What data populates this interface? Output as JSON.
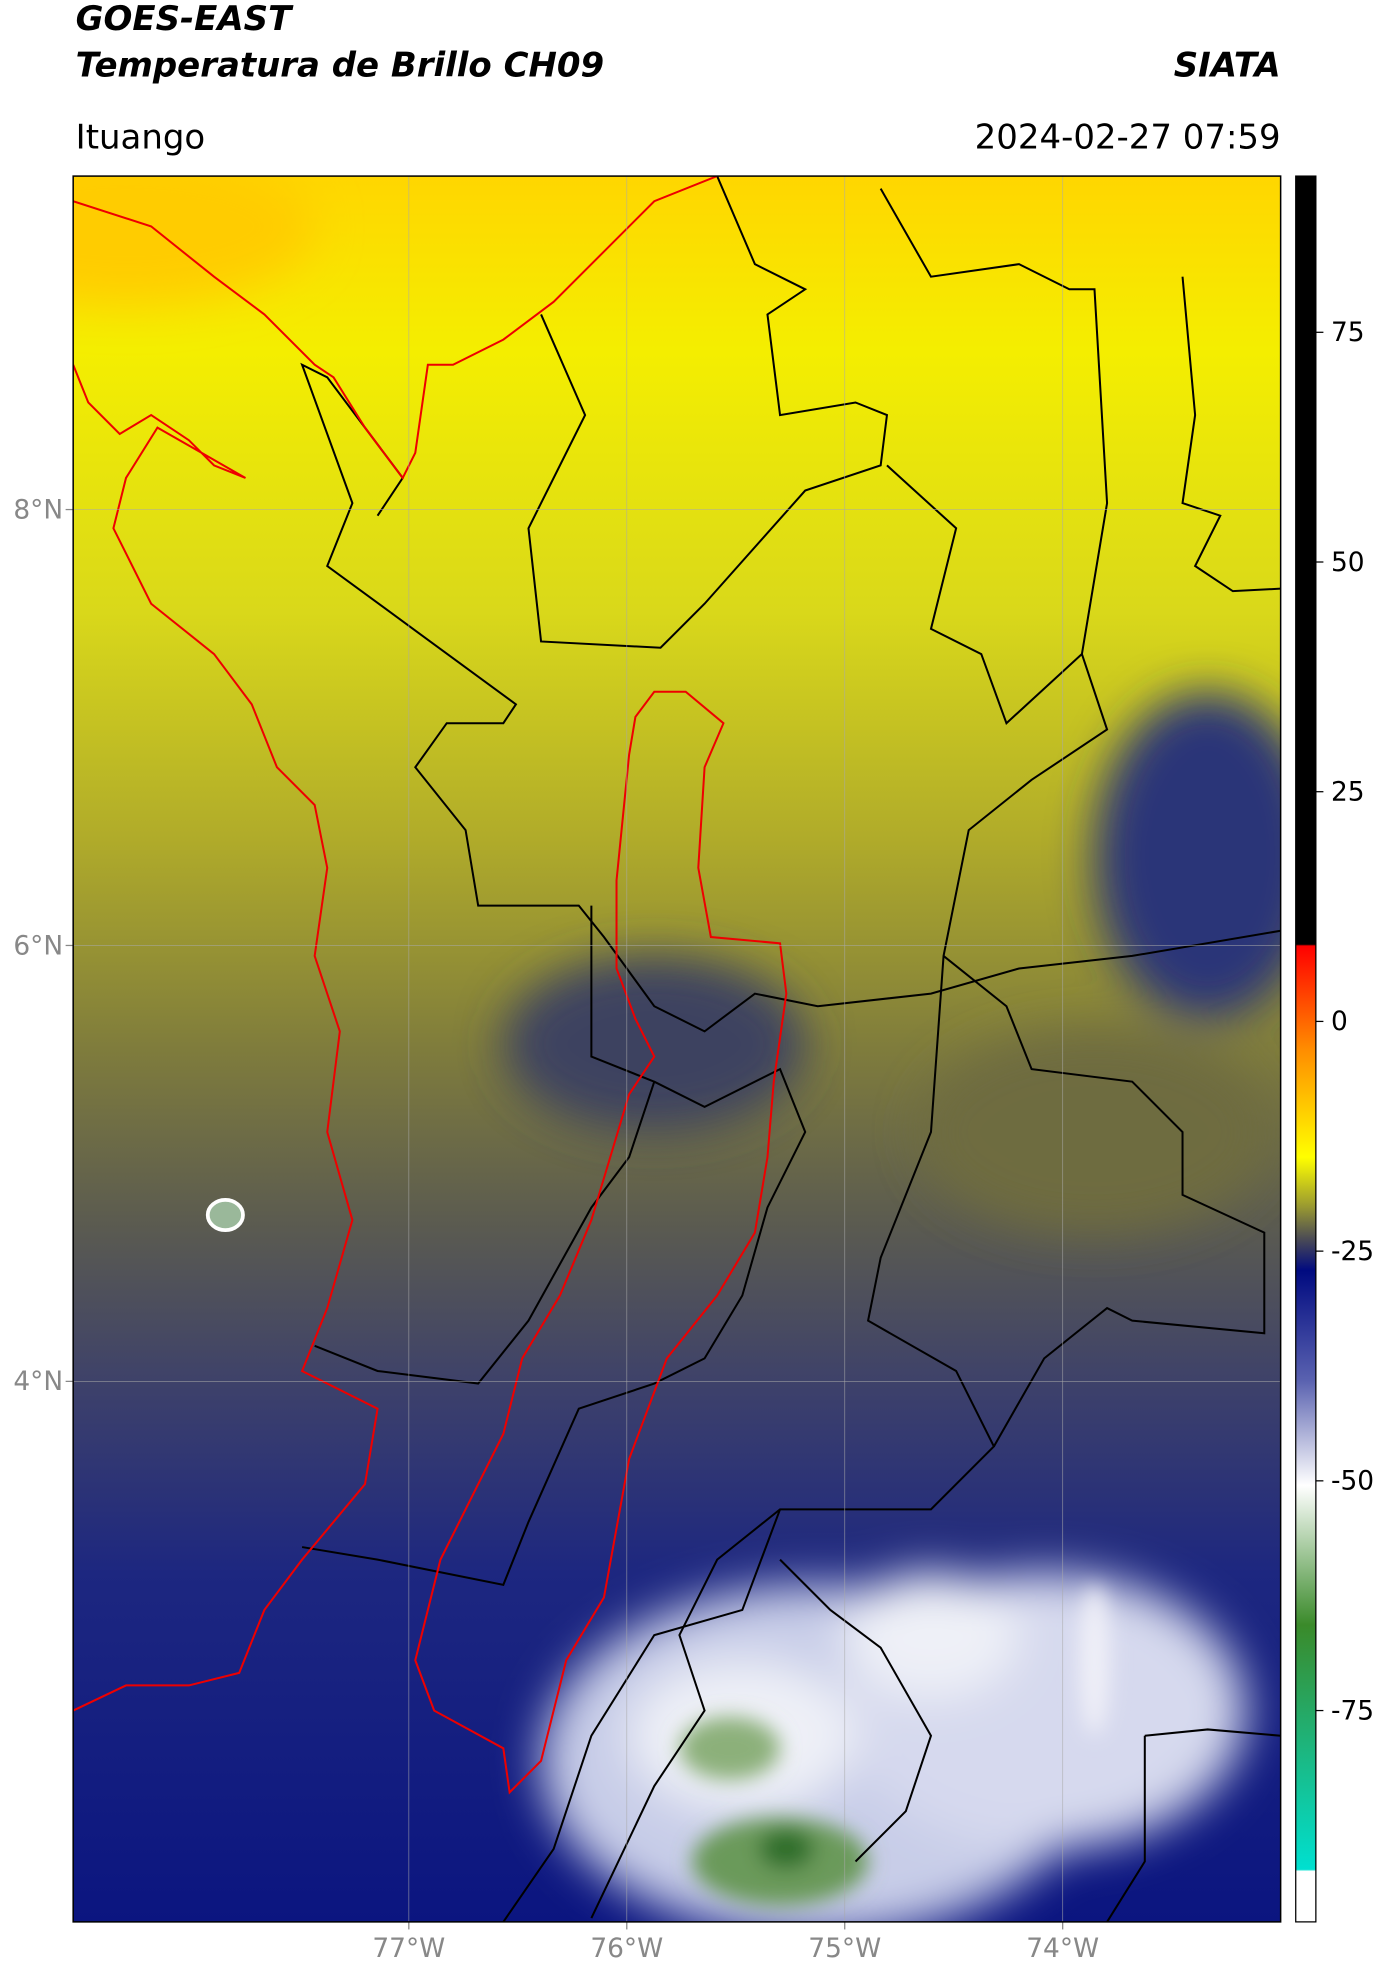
{
  "header": {
    "title": "GOES-EAST",
    "subtitle": "Temperatura de Brillo CH09",
    "agency": "SIATA",
    "location": "Ituango",
    "datetime": "2024-02-27 07:59"
  },
  "map": {
    "lonlim": [
      -78.54,
      -73.0
    ],
    "latlim": [
      1.52,
      9.53
    ],
    "lonticks": [
      {
        "value": -77,
        "label": "77°W"
      },
      {
        "value": -76,
        "label": "76°W"
      },
      {
        "value": -75,
        "label": "75°W"
      },
      {
        "value": -74,
        "label": "74°W"
      }
    ],
    "latticks": [
      {
        "value": 8,
        "label": "8°N"
      },
      {
        "value": 6,
        "label": "6°N"
      },
      {
        "value": 4,
        "label": "4°N"
      }
    ],
    "grid": true,
    "colorbar": {
      "clim": [
        -98,
        92
      ],
      "ticks": [
        75,
        50,
        25,
        0,
        -25,
        -50,
        -75
      ]
    }
  }
}
